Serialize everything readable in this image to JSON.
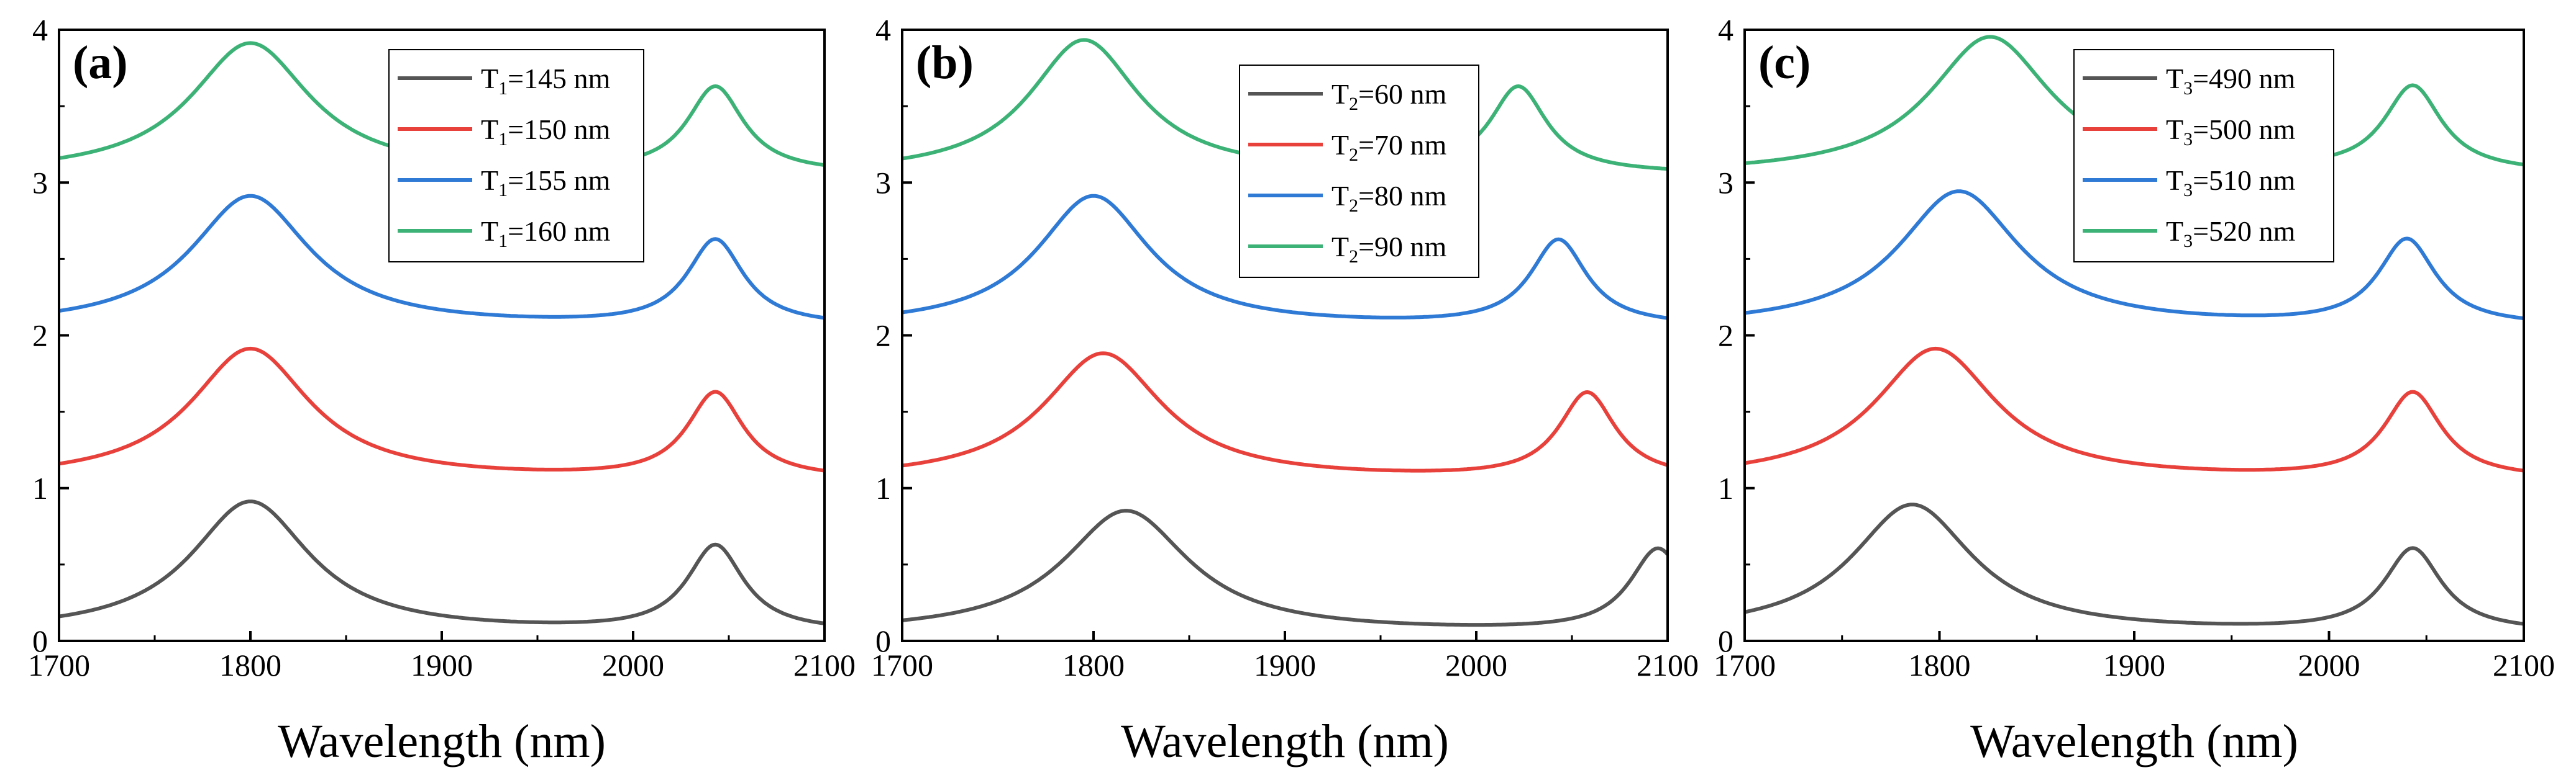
{
  "figure": {
    "panels": [
      {
        "label": "(a)",
        "legend": [
          {
            "base": "T",
            "sub": "1",
            "value": "=145 nm"
          },
          {
            "base": "T",
            "sub": "1",
            "value": "=150 nm"
          },
          {
            "base": "T",
            "sub": "1",
            "value": "=155 nm"
          },
          {
            "base": "T",
            "sub": "1",
            "value": "=160 nm"
          }
        ]
      },
      {
        "label": "(b)",
        "legend": [
          {
            "base": "T",
            "sub": "2",
            "value": "=60 nm"
          },
          {
            "base": "T",
            "sub": "2",
            "value": "=70 nm"
          },
          {
            "base": "T",
            "sub": "2",
            "value": "=80 nm"
          },
          {
            "base": "T",
            "sub": "2",
            "value": "=90 nm"
          }
        ]
      },
      {
        "label": "(c)",
        "legend": [
          {
            "base": "T",
            "sub": "3",
            "value": "=490 nm"
          },
          {
            "base": "T",
            "sub": "3",
            "value": "=500 nm"
          },
          {
            "base": "T",
            "sub": "3",
            "value": "=510 nm"
          },
          {
            "base": "T",
            "sub": "3",
            "value": "=520 nm"
          }
        ]
      }
    ]
  },
  "chart_data": [
    {
      "type": "line",
      "title": "(a)",
      "xlabel": "Wavelength (nm)",
      "ylabel": "",
      "xlim": [
        1700,
        2100
      ],
      "ylim": [
        0,
        4
      ],
      "xticks": [
        1700,
        1800,
        1900,
        2000,
        2100
      ],
      "yticks": [
        0,
        1,
        2,
        3,
        4
      ],
      "legend_position": "top-right",
      "series": [
        {
          "name": "T1=145 nm",
          "color": "#555555",
          "offset": 0,
          "baseline": 0.05,
          "peaks": [
            {
              "x": 1800,
              "y": 0.91,
              "width": 38
            },
            {
              "x": 2043,
              "y": 0.61,
              "width": 18
            }
          ]
        },
        {
          "name": "T1=150 nm",
          "color": "#e8413c",
          "offset": 1,
          "baseline": 0.05,
          "peaks": [
            {
              "x": 1800,
              "y": 0.91,
              "width": 38
            },
            {
              "x": 2043,
              "y": 0.61,
              "width": 18
            }
          ]
        },
        {
          "name": "T1=155 nm",
          "color": "#2f7ad5",
          "offset": 2,
          "baseline": 0.05,
          "peaks": [
            {
              "x": 1800,
              "y": 0.91,
              "width": 38
            },
            {
              "x": 2043,
              "y": 0.61,
              "width": 18
            }
          ]
        },
        {
          "name": "T1=160 nm",
          "color": "#3db277",
          "offset": 3,
          "baseline": 0.05,
          "peaks": [
            {
              "x": 1800,
              "y": 0.91,
              "width": 38
            },
            {
              "x": 2043,
              "y": 0.61,
              "width": 18
            }
          ]
        }
      ]
    },
    {
      "type": "line",
      "title": "(b)",
      "xlabel": "Wavelength (nm)",
      "ylabel": "",
      "xlim": [
        1700,
        2100
      ],
      "ylim": [
        0,
        4
      ],
      "xticks": [
        1700,
        1800,
        1900,
        2000,
        2100
      ],
      "yticks": [
        0,
        1,
        2,
        3,
        4
      ],
      "legend_position": "top-right",
      "series": [
        {
          "name": "T2=60 nm",
          "color": "#555555",
          "offset": 0,
          "baseline": 0.05,
          "peaks": [
            {
              "x": 1817,
              "y": 0.85,
              "width": 40
            },
            {
              "x": 2095,
              "y": 0.59,
              "width": 18
            }
          ]
        },
        {
          "name": "T2=70 nm",
          "color": "#e8413c",
          "offset": 1,
          "baseline": 0.05,
          "peaks": [
            {
              "x": 1805,
              "y": 0.88,
              "width": 38
            },
            {
              "x": 2058,
              "y": 0.61,
              "width": 18
            }
          ]
        },
        {
          "name": "T2=80 nm",
          "color": "#2f7ad5",
          "offset": 2,
          "baseline": 0.05,
          "peaks": [
            {
              "x": 1800,
              "y": 0.91,
              "width": 36
            },
            {
              "x": 2043,
              "y": 0.61,
              "width": 18
            }
          ]
        },
        {
          "name": "T2=90 nm",
          "color": "#3db277",
          "offset": 3,
          "baseline": 0.05,
          "peaks": [
            {
              "x": 1795,
              "y": 0.93,
              "width": 35
            },
            {
              "x": 2022,
              "y": 0.61,
              "width": 18
            }
          ]
        }
      ]
    },
    {
      "type": "line",
      "title": "(c)",
      "xlabel": "Wavelength (nm)",
      "ylabel": "",
      "xlim": [
        1700,
        2100
      ],
      "ylim": [
        0,
        4
      ],
      "xticks": [
        1700,
        1800,
        1900,
        2000,
        2100
      ],
      "yticks": [
        0,
        1,
        2,
        3,
        4
      ],
      "legend_position": "top-right",
      "series": [
        {
          "name": "T3=490 nm",
          "color": "#555555",
          "offset": 0,
          "baseline": 0.05,
          "peaks": [
            {
              "x": 1786,
              "y": 0.89,
              "width": 38
            },
            {
              "x": 2043,
              "y": 0.59,
              "width": 18
            }
          ]
        },
        {
          "name": "T3=500 nm",
          "color": "#e8413c",
          "offset": 1,
          "baseline": 0.05,
          "peaks": [
            {
              "x": 1798,
              "y": 0.91,
              "width": 38
            },
            {
              "x": 2043,
              "y": 0.61,
              "width": 18
            }
          ]
        },
        {
          "name": "T3=510 nm",
          "color": "#2f7ad5",
          "offset": 2,
          "baseline": 0.05,
          "peaks": [
            {
              "x": 1810,
              "y": 0.94,
              "width": 38
            },
            {
              "x": 2040,
              "y": 0.61,
              "width": 18
            }
          ]
        },
        {
          "name": "T3=520 nm",
          "color": "#3db277",
          "offset": 3,
          "baseline": 0.05,
          "peaks": [
            {
              "x": 1826,
              "y": 0.95,
              "width": 38
            },
            {
              "x": 2043,
              "y": 0.61,
              "width": 18
            }
          ]
        }
      ]
    }
  ]
}
